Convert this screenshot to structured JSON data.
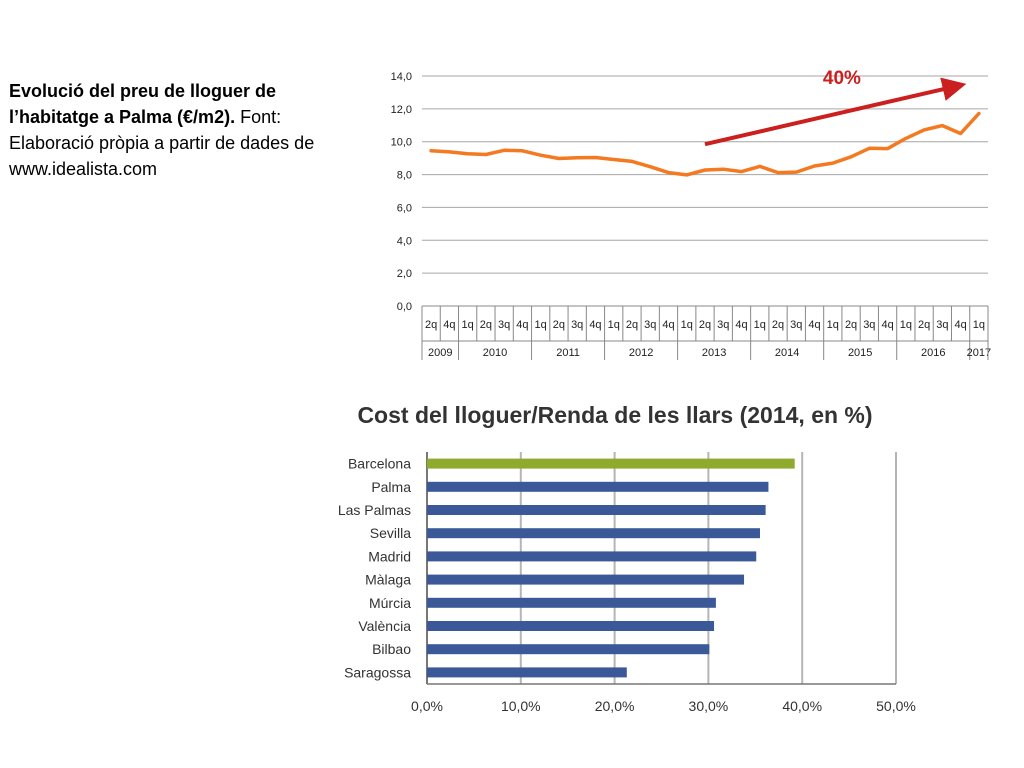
{
  "caption": {
    "bold": "Evolució del preu de lloguer de l’habitatge a Palma (€/m2).",
    "normal": " Font: Elaboració pròpia a partir de dades de www.idealista.com"
  },
  "chart_data": [
    {
      "type": "line",
      "title": "",
      "ylabel": "",
      "ylim": [
        0,
        14
      ],
      "yticks": [
        "0,0",
        "2,0",
        "4,0",
        "6,0",
        "8,0",
        "10,0",
        "12,0",
        "14,0"
      ],
      "grid": true,
      "quarter_labels": [
        "2q",
        "4q",
        "1q",
        "2q",
        "3q",
        "4q",
        "1q",
        "2q",
        "3q",
        "4q",
        "1q",
        "2q",
        "3q",
        "4q",
        "1q",
        "2q",
        "3q",
        "4q",
        "1q",
        "2q",
        "3q",
        "4q",
        "1q",
        "2q",
        "3q",
        "4q",
        "1q",
        "2q",
        "3q",
        "4q",
        "1q"
      ],
      "year_labels": [
        "2009",
        "2010",
        "2011",
        "2012",
        "2013",
        "2014",
        "2015",
        "2016",
        "2017"
      ],
      "year_spans": [
        2,
        4,
        4,
        4,
        4,
        4,
        4,
        4,
        1
      ],
      "series": [
        {
          "name": "Palma €/m2",
          "color": "#f47920",
          "values": [
            9.45,
            9.38,
            9.27,
            9.22,
            9.48,
            9.45,
            9.18,
            8.98,
            9.02,
            9.04,
            8.92,
            8.8,
            8.48,
            8.12,
            7.98,
            8.28,
            8.33,
            8.18,
            8.5,
            8.12,
            8.15,
            8.52,
            8.7,
            9.08,
            9.6,
            9.58,
            10.2,
            10.72,
            10.98,
            10.5,
            11.72
          ]
        }
      ],
      "annotation": {
        "text": "40%",
        "color": "#cc1f1f",
        "from_index": 15,
        "from_value": 9.85,
        "to_index": 29,
        "to_value": 13.45
      }
    },
    {
      "type": "bar",
      "orientation": "horizontal",
      "title": "Cost del lloguer/Renda de les llars (2014, en %)",
      "categories": [
        "Barcelona",
        "Palma",
        "Las Palmas",
        "Sevilla",
        "Madrid",
        "Màlaga",
        "Múrcia",
        "València",
        "Bilbao",
        "Saragossa"
      ],
      "values": [
        39.2,
        36.4,
        36.1,
        35.5,
        35.1,
        33.8,
        30.8,
        30.6,
        30.1,
        21.3
      ],
      "colors": [
        "#8faa2d",
        "#3b5998",
        "#3b5998",
        "#3b5998",
        "#3b5998",
        "#3b5998",
        "#3b5998",
        "#3b5998",
        "#3b5998",
        "#3b5998"
      ],
      "xlim": [
        0,
        50
      ],
      "xticks": [
        "0,0%",
        "10,0%",
        "20,0%",
        "30,0%",
        "40,0%",
        "50,0%"
      ],
      "grid": true
    }
  ]
}
